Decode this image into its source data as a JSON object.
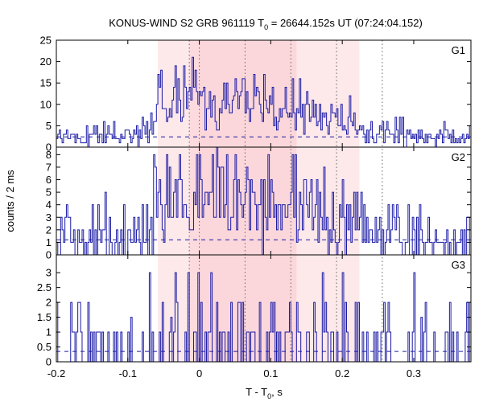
{
  "title": {
    "prefix": "KONUS-WIND S2 GRB 961119 T",
    "sub": "0",
    "suffix": " = 26644.152s UT (07:24:04.152)"
  },
  "xlabel": {
    "main": "T - T",
    "sub": "0",
    "suffix": ", s"
  },
  "ylabel": "counts / 2 ms",
  "colors": {
    "line": "#1a1aa6",
    "shade_outer": "#fde8ea",
    "shade_inner": "#fbd5da",
    "vline": "#666666"
  },
  "chart_data": {
    "type": "line",
    "style": "histogram-step",
    "xlim": [
      -0.2,
      0.38
    ],
    "x_ticks": [
      -0.2,
      -0.1,
      0,
      0.1,
      0.2,
      0.3
    ],
    "x_tick_labels": [
      "-0.2",
      "-0.1",
      "0",
      "0.1",
      "0.2",
      "0.3"
    ],
    "shaded_intervals": [
      {
        "from": -0.058,
        "to": 0.224,
        "tone": "outer"
      },
      {
        "from": -0.014,
        "to": 0.136,
        "tone": "inner"
      },
      {
        "from": 0.0,
        "to": 0.136,
        "tone": "inner"
      }
    ],
    "dotted_vlines": [
      -0.014,
      0.0,
      0.064,
      0.128,
      0.192,
      0.256
    ],
    "panels": [
      {
        "name": "G1",
        "ylim": [
          0,
          25
        ],
        "y_ticks": [
          0,
          5,
          10,
          15,
          20,
          25
        ],
        "background": 2.4,
        "envelope": [
          [
            -0.2,
            2
          ],
          [
            -0.07,
            3
          ],
          [
            -0.06,
            9
          ],
          [
            -0.04,
            12
          ],
          [
            -0.02,
            11
          ],
          [
            0.0,
            11
          ],
          [
            0.04,
            11
          ],
          [
            0.08,
            11
          ],
          [
            0.1,
            10
          ],
          [
            0.12,
            9
          ],
          [
            0.14,
            8
          ],
          [
            0.16,
            8
          ],
          [
            0.2,
            7
          ],
          [
            0.23,
            4
          ],
          [
            0.26,
            3
          ],
          [
            0.38,
            2.5
          ]
        ],
        "spikes": [
          [
            -0.01,
            21
          ],
          [
            -0.005,
            18
          ],
          [
            -0.022,
            19
          ],
          [
            -0.055,
            14
          ],
          [
            0.09,
            17
          ],
          [
            0.13,
            16
          ],
          [
            0.058,
            13
          ]
        ]
      },
      {
        "name": "G2",
        "ylim": [
          0,
          8.6
        ],
        "y_ticks": [
          0,
          1,
          2,
          3,
          4,
          5,
          6,
          7,
          8
        ],
        "background": 1.2,
        "envelope": [
          [
            -0.2,
            1.3
          ],
          [
            -0.07,
            1.6
          ],
          [
            -0.06,
            3.8
          ],
          [
            -0.04,
            4.2
          ],
          [
            0.0,
            4.1
          ],
          [
            0.05,
            4.0
          ],
          [
            0.1,
            3.7
          ],
          [
            0.14,
            3.2
          ],
          [
            0.18,
            3.0
          ],
          [
            0.22,
            2.2
          ],
          [
            0.26,
            1.6
          ],
          [
            0.38,
            1.3
          ]
        ],
        "spikes": [
          [
            -0.063,
            8
          ],
          [
            -0.042,
            7
          ],
          [
            0.033,
            7
          ],
          [
            0.068,
            6
          ],
          [
            0.13,
            8
          ],
          [
            0.175,
            7
          ],
          [
            0.2,
            6
          ]
        ]
      },
      {
        "name": "G3",
        "ylim": [
          0,
          3.6
        ],
        "y_ticks": [
          0,
          0.5,
          1,
          1.5,
          2,
          2.5,
          3
        ],
        "background": 0.35,
        "envelope": [
          [
            -0.2,
            0.35
          ],
          [
            -0.06,
            0.5
          ],
          [
            -0.02,
            0.7
          ],
          [
            0.05,
            0.7
          ],
          [
            0.13,
            0.6
          ],
          [
            0.2,
            0.5
          ],
          [
            0.26,
            0.4
          ],
          [
            0.38,
            0.35
          ]
        ],
        "spikes": [
          [
            -0.07,
            3
          ],
          [
            -0.17,
            2
          ],
          [
            -0.095,
            1.5
          ],
          [
            -0.04,
            1.5
          ],
          [
            0.045,
            2
          ],
          [
            0.16,
            2
          ],
          [
            0.31,
            1.5
          ],
          [
            0.375,
            2
          ]
        ]
      }
    ]
  }
}
